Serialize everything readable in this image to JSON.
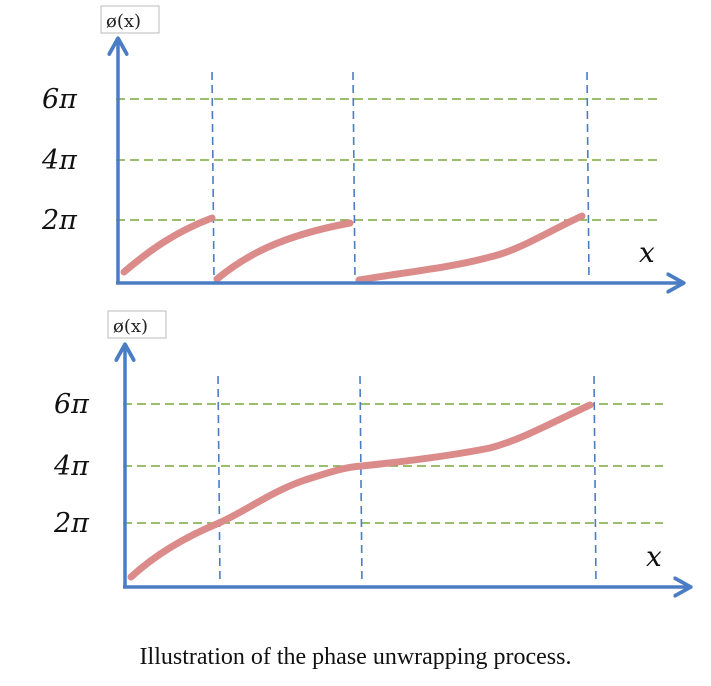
{
  "colors": {
    "axis": "#4a7dc4",
    "grid": "#78a83c",
    "divider": "#4a7dc4",
    "curve": "#dc8b8b"
  },
  "top_panel": {
    "y_axis_label": "ø(x)",
    "x_axis_label": "x",
    "tick_labels": [
      "6π",
      "4π",
      "2π"
    ],
    "tick_values_pi": [
      6,
      4,
      2
    ],
    "wrap_boundaries_x": [
      1,
      2,
      3.6
    ],
    "segments": [
      {
        "x": [
          0,
          0.3,
          0.6,
          1.0
        ],
        "phase_pi": [
          0.1,
          0.85,
          1.45,
          2.0
        ]
      },
      {
        "x": [
          1.0,
          1.3,
          1.6,
          2.0
        ],
        "phase_pi": [
          0.05,
          0.85,
          1.45,
          1.9
        ]
      },
      {
        "x": [
          2.0,
          2.5,
          3.0,
          3.3,
          3.6
        ],
        "phase_pi": [
          0.05,
          0.35,
          0.65,
          1.3,
          2.05
        ]
      }
    ]
  },
  "bottom_panel": {
    "y_axis_label": "ø(x)",
    "x_axis_label": "x",
    "tick_labels": [
      "6π",
      "4π",
      "2π"
    ],
    "tick_values_pi": [
      6,
      4,
      2
    ],
    "wrap_boundaries_x": [
      1,
      2,
      3.6
    ],
    "curve": {
      "x": [
        0,
        0.3,
        0.6,
        1.0,
        1.3,
        1.6,
        2.0,
        2.5,
        3.0,
        3.3,
        3.6
      ],
      "phase_pi": [
        0.1,
        0.85,
        1.45,
        2.0,
        2.85,
        3.45,
        3.9,
        4.35,
        4.65,
        5.3,
        6.05
      ]
    }
  },
  "caption": "Illustration of the phase unwrapping process."
}
